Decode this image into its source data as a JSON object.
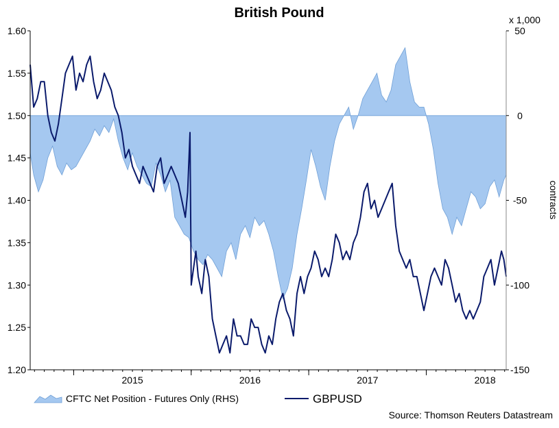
{
  "chart_data": {
    "type": "line",
    "title": "British Pound",
    "source": "Source: Thomson Reuters Datastream",
    "right_axis_multiplier": "x 1,000",
    "right_axis_label": "contracts",
    "x_ticks": [
      "2015",
      "2016",
      "2017",
      "2018"
    ],
    "x_range": [
      2014.63,
      2018.68
    ],
    "left_axis": {
      "range": [
        1.2,
        1.6
      ],
      "ticks": [
        "1.20",
        "1.25",
        "1.30",
        "1.35",
        "1.40",
        "1.45",
        "1.50",
        "1.55",
        "1.60"
      ]
    },
    "right_axis": {
      "range": [
        -150,
        50
      ],
      "ticks": [
        "-150",
        "-100",
        "-50",
        "0",
        "50"
      ]
    },
    "grid": false,
    "legend": {
      "position": "bottom",
      "entries": [
        "CFTC Net Position - Futures Only (RHS)",
        "GBPUSD"
      ]
    },
    "colors": {
      "line": "#0a1a6b",
      "area_fill": "#a5c8f0",
      "area_edge": "#6f9fd6"
    },
    "series": [
      {
        "name": "CFTC Net Position - Futures Only (RHS)",
        "type": "area",
        "axis": "right",
        "x": [
          2014.63,
          2014.66,
          2014.7,
          2014.74,
          2014.78,
          2014.82,
          2014.86,
          2014.9,
          2014.94,
          2014.98,
          2015.02,
          2015.06,
          2015.1,
          2015.14,
          2015.18,
          2015.22,
          2015.26,
          2015.3,
          2015.34,
          2015.38,
          2015.42,
          2015.46,
          2015.5,
          2015.54,
          2015.58,
          2015.62,
          2015.66,
          2015.7,
          2015.74,
          2015.78,
          2015.82,
          2015.86,
          2015.9,
          2015.94,
          2015.98,
          2016.02,
          2016.06,
          2016.1,
          2016.14,
          2016.18,
          2016.22,
          2016.26,
          2016.3,
          2016.34,
          2016.38,
          2016.42,
          2016.46,
          2016.5,
          2016.54,
          2016.58,
          2016.62,
          2016.66,
          2016.7,
          2016.74,
          2016.78,
          2016.82,
          2016.86,
          2016.9,
          2016.94,
          2016.98,
          2017.02,
          2017.06,
          2017.1,
          2017.14,
          2017.18,
          2017.22,
          2017.26,
          2017.3,
          2017.34,
          2017.38,
          2017.42,
          2017.46,
          2017.5,
          2017.54,
          2017.58,
          2017.62,
          2017.66,
          2017.7,
          2017.74,
          2017.78,
          2017.82,
          2017.86,
          2017.9,
          2017.94,
          2017.98,
          2018.02,
          2018.06,
          2018.1,
          2018.14,
          2018.18,
          2018.22,
          2018.26,
          2018.3,
          2018.34,
          2018.38,
          2018.42,
          2018.46,
          2018.5,
          2018.54,
          2018.58,
          2018.62,
          2018.66,
          2018.68
        ],
        "values": [
          -22,
          -35,
          -45,
          -38,
          -25,
          -18,
          -30,
          -35,
          -28,
          -32,
          -30,
          -25,
          -20,
          -15,
          -8,
          -12,
          -6,
          -10,
          -2,
          -15,
          -25,
          -32,
          -22,
          -30,
          -35,
          -40,
          -42,
          -28,
          -35,
          -45,
          -38,
          -60,
          -65,
          -70,
          -72,
          -80,
          -85,
          -88,
          -82,
          -85,
          -90,
          -95,
          -80,
          -75,
          -85,
          -70,
          -65,
          -72,
          -60,
          -65,
          -62,
          -70,
          -80,
          -95,
          -108,
          -102,
          -90,
          -70,
          -55,
          -38,
          -20,
          -30,
          -42,
          -50,
          -30,
          -15,
          -5,
          0,
          5,
          -8,
          0,
          10,
          15,
          20,
          25,
          12,
          8,
          15,
          30,
          35,
          40,
          20,
          8,
          5,
          5,
          -5,
          -20,
          -40,
          -55,
          -60,
          -70,
          -60,
          -65,
          -55,
          -45,
          -48,
          -55,
          -52,
          -42,
          -38,
          -48,
          -38,
          -35
        ]
      },
      {
        "name": "GBPUSD",
        "type": "line",
        "axis": "left",
        "x": [
          2014.63,
          2014.66,
          2014.69,
          2014.72,
          2014.75,
          2014.78,
          2014.81,
          2014.84,
          2014.87,
          2014.9,
          2014.93,
          2014.96,
          2014.99,
          2015.02,
          2015.05,
          2015.08,
          2015.11,
          2015.14,
          2015.17,
          2015.2,
          2015.23,
          2015.26,
          2015.29,
          2015.32,
          2015.35,
          2015.38,
          2015.41,
          2015.44,
          2015.47,
          2015.5,
          2015.53,
          2015.56,
          2015.59,
          2015.62,
          2015.65,
          2015.68,
          2015.71,
          2015.74,
          2015.77,
          2015.8,
          2015.83,
          2015.86,
          2015.89,
          2015.92,
          2015.95,
          2015.97,
          2015.99,
          2016.0,
          2016.02,
          2016.04,
          2016.06,
          2016.09,
          2016.12,
          2016.15,
          2016.18,
          2016.21,
          2016.24,
          2016.27,
          2016.3,
          2016.33,
          2016.36,
          2016.39,
          2016.42,
          2016.45,
          2016.48,
          2016.51,
          2016.54,
          2016.57,
          2016.6,
          2016.63,
          2016.66,
          2016.69,
          2016.72,
          2016.75,
          2016.78,
          2016.81,
          2016.84,
          2016.87,
          2016.9,
          2016.93,
          2016.96,
          2016.99,
          2017.02,
          2017.05,
          2017.08,
          2017.11,
          2017.14,
          2017.17,
          2017.2,
          2017.23,
          2017.26,
          2017.29,
          2017.32,
          2017.35,
          2017.38,
          2017.41,
          2017.44,
          2017.47,
          2017.5,
          2017.53,
          2017.56,
          2017.59,
          2017.62,
          2017.65,
          2017.68,
          2017.71,
          2017.74,
          2017.77,
          2017.8,
          2017.83,
          2017.86,
          2017.89,
          2017.92,
          2017.95,
          2017.98,
          2018.01,
          2018.04,
          2018.07,
          2018.1,
          2018.13,
          2018.16,
          2018.19,
          2018.22,
          2018.25,
          2018.28,
          2018.31,
          2018.34,
          2018.37,
          2018.4,
          2018.43,
          2018.46,
          2018.49,
          2018.52,
          2018.55,
          2018.58,
          2018.61,
          2018.64,
          2018.66,
          2018.68
        ],
        "values": [
          1.56,
          1.51,
          1.52,
          1.54,
          1.54,
          1.5,
          1.48,
          1.47,
          1.49,
          1.52,
          1.55,
          1.56,
          1.57,
          1.53,
          1.55,
          1.54,
          1.56,
          1.57,
          1.54,
          1.52,
          1.53,
          1.55,
          1.54,
          1.53,
          1.51,
          1.5,
          1.48,
          1.45,
          1.46,
          1.44,
          1.43,
          1.42,
          1.44,
          1.43,
          1.42,
          1.41,
          1.44,
          1.45,
          1.42,
          1.43,
          1.44,
          1.43,
          1.42,
          1.4,
          1.38,
          1.41,
          1.48,
          1.3,
          1.32,
          1.34,
          1.31,
          1.29,
          1.33,
          1.31,
          1.26,
          1.24,
          1.22,
          1.23,
          1.24,
          1.22,
          1.26,
          1.24,
          1.24,
          1.23,
          1.23,
          1.26,
          1.25,
          1.25,
          1.23,
          1.22,
          1.24,
          1.23,
          1.26,
          1.28,
          1.29,
          1.27,
          1.26,
          1.24,
          1.29,
          1.31,
          1.29,
          1.31,
          1.32,
          1.34,
          1.33,
          1.31,
          1.32,
          1.31,
          1.33,
          1.36,
          1.35,
          1.33,
          1.34,
          1.33,
          1.35,
          1.36,
          1.38,
          1.41,
          1.42,
          1.39,
          1.4,
          1.38,
          1.39,
          1.4,
          1.41,
          1.42,
          1.37,
          1.34,
          1.33,
          1.32,
          1.33,
          1.31,
          1.31,
          1.29,
          1.27,
          1.29,
          1.31,
          1.32,
          1.31,
          1.3,
          1.33,
          1.32,
          1.3,
          1.28,
          1.29,
          1.27,
          1.26,
          1.27,
          1.26,
          1.27,
          1.28,
          1.31,
          1.32,
          1.33,
          1.3,
          1.32,
          1.34,
          1.33,
          1.31
        ]
      }
    ]
  }
}
